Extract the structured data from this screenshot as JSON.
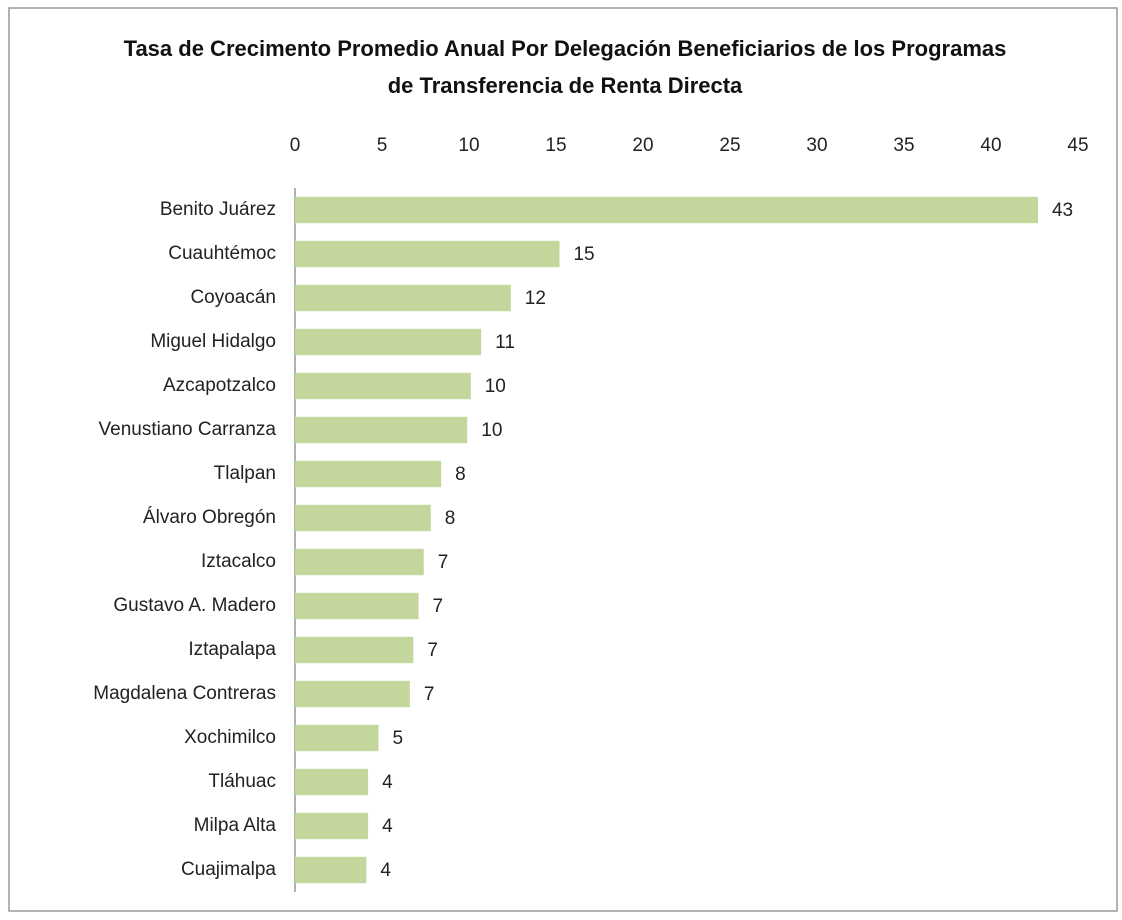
{
  "chart_data": {
    "type": "barh",
    "title": "Tasa de Crecimento Promedio Anual Por Delegación Beneficiarios de los Programas de Transferencia de Renta Directa",
    "categories": [
      "Benito Juárez",
      "Cuauhtémoc",
      "Coyoacán",
      "Miguel Hidalgo",
      "Azcapotzalco",
      "Venustiano Carranza",
      "Tlalpan",
      "Álvaro Obregón",
      "Iztacalco",
      "Gustavo A. Madero",
      "Iztapalapa",
      "Magdalena Contreras",
      "Xochimilco",
      "Tláhuac",
      "Milpa Alta",
      "Cuajimalpa"
    ],
    "values": [
      42.7,
      15.2,
      12.4,
      10.7,
      10.1,
      9.9,
      8.4,
      7.8,
      7.4,
      7.1,
      6.8,
      6.6,
      4.8,
      4.2,
      4.2,
      4.1
    ],
    "value_labels": [
      "43",
      "15",
      "12",
      "11",
      "10",
      "10",
      "8",
      "8",
      "7",
      "7",
      "7",
      "7",
      "5",
      "4",
      "4",
      "4"
    ],
    "color": "#c3d69b",
    "xlim": [
      0,
      45
    ],
    "xticks": [
      0,
      5,
      10,
      15,
      20,
      25,
      30,
      35,
      40,
      45
    ],
    "grid": false
  }
}
